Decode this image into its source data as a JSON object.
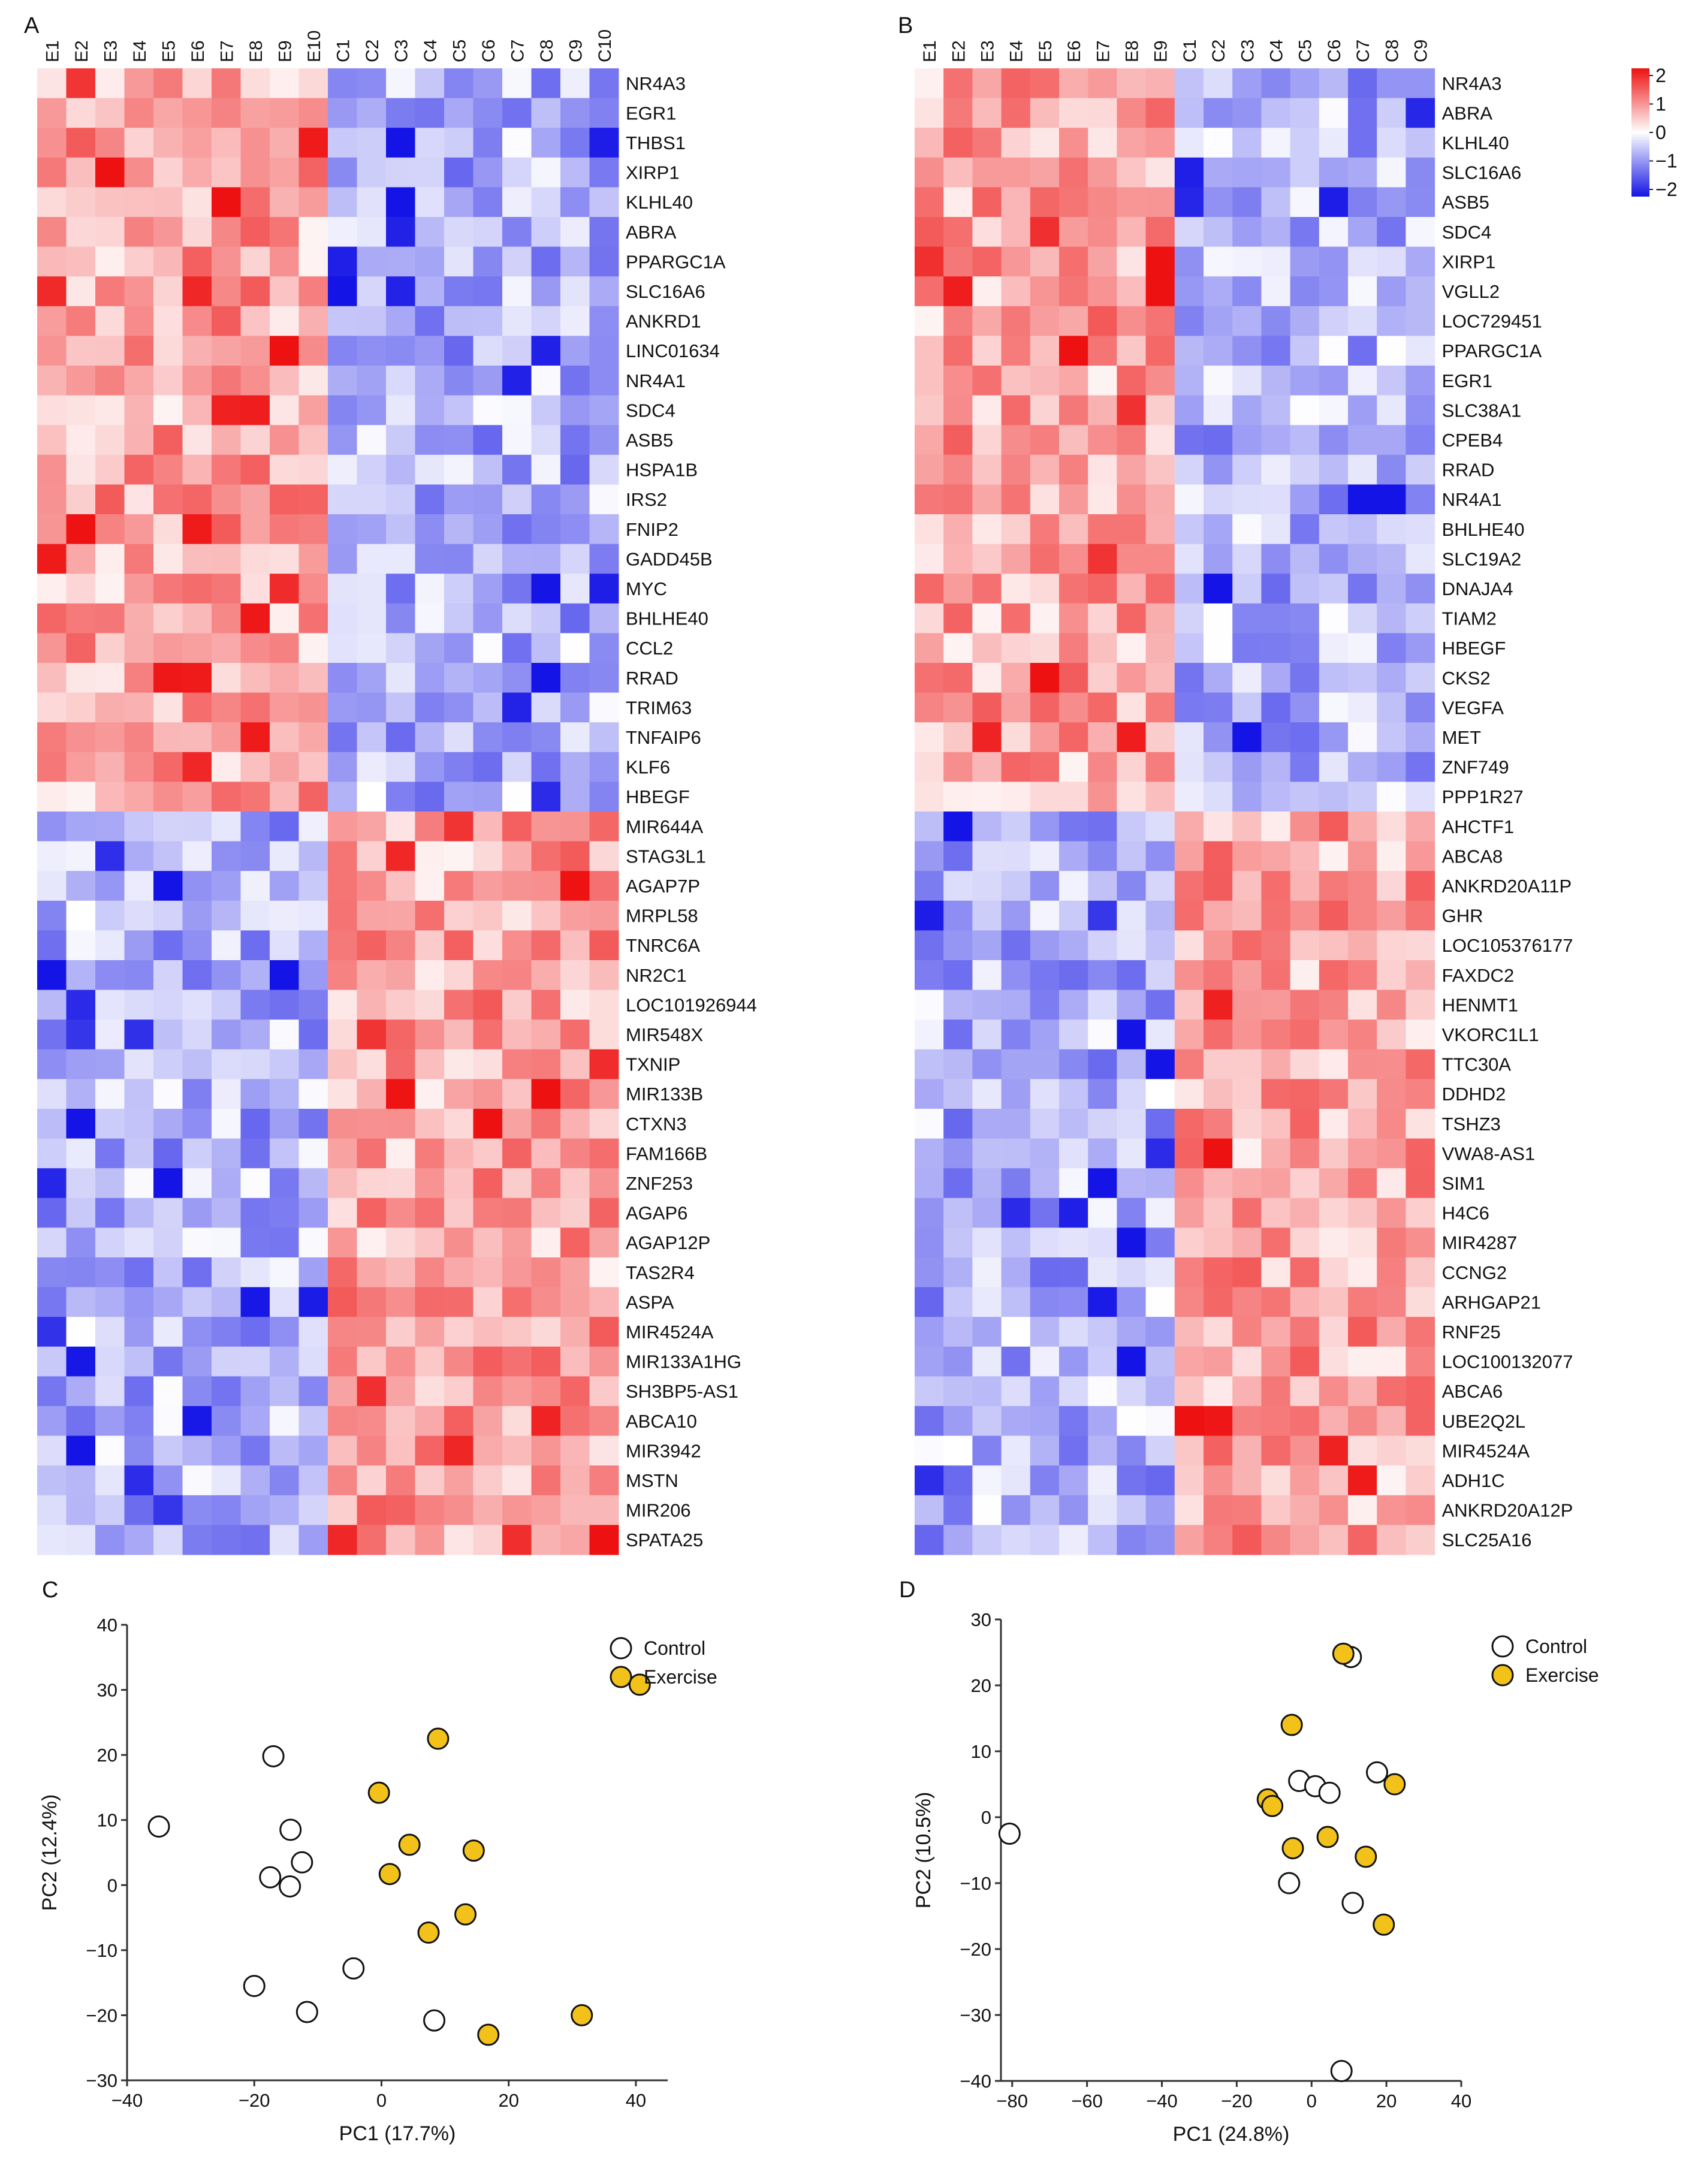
{
  "chart_data": [
    {
      "panel": "A",
      "type": "heatmap",
      "columns": [
        "E1",
        "E2",
        "E3",
        "E4",
        "E5",
        "E6",
        "E7",
        "E8",
        "E9",
        "E10",
        "C1",
        "C2",
        "C3",
        "C4",
        "C5",
        "C6",
        "C7",
        "C8",
        "C9",
        "C10"
      ],
      "rows": [
        "NR4A3",
        "EGR1",
        "THBS1",
        "XIRP1",
        "KLHL40",
        "ABRA",
        "PPARGC1A",
        "SLC16A6",
        "ANKRD1",
        "LINC01634",
        "NR4A1",
        "SDC4",
        "ASB5",
        "HSPA1B",
        "IRS2",
        "FNIP2",
        "GADD45B",
        "MYC",
        "BHLHE40",
        "CCL2",
        "RRAD",
        "TRIM63",
        "TNFAIP6",
        "KLF6",
        "HBEGF",
        "MIR644A",
        "STAG3L1",
        "AGAP7P",
        "MRPL58",
        "TNRC6A",
        "NR2C1",
        "LOC101926944",
        "MIR548X",
        "TXNIP",
        "MIR133B",
        "CTXN3",
        "FAM166B",
        "ZNF253",
        "AGAP6",
        "AGAP12P",
        "TAS2R4",
        "ASPA",
        "MIR4524A",
        "MIR133A1HG",
        "SH3BP5-AS1",
        "ABCA10",
        "MIR3942",
        "MSTN",
        "MIR206",
        "SPATA25"
      ],
      "up_rows": 25,
      "exercise_cols": 10,
      "color_range": [
        -2,
        2
      ]
    },
    {
      "panel": "B",
      "type": "heatmap",
      "columns": [
        "E1",
        "E2",
        "E3",
        "E4",
        "E5",
        "E6",
        "E7",
        "E8",
        "E9",
        "C1",
        "C2",
        "C3",
        "C4",
        "C5",
        "C6",
        "C7",
        "C8",
        "C9"
      ],
      "rows": [
        "NR4A3",
        "ABRA",
        "KLHL40",
        "SLC16A6",
        "ASB5",
        "SDC4",
        "XIRP1",
        "VGLL2",
        "LOC729451",
        "PPARGC1A",
        "EGR1",
        "SLC38A1",
        "CPEB4",
        "RRAD",
        "NR4A1",
        "BHLHE40",
        "SLC19A2",
        "DNAJA4",
        "TIAM2",
        "HBEGF",
        "CKS2",
        "VEGFA",
        "MET",
        "ZNF749",
        "PPP1R27",
        "AHCTF1",
        "ABCA8",
        "ANKRD20A11P",
        "GHR",
        "LOC105376177",
        "FAXDC2",
        "HENMT1",
        "VKORC1L1",
        "TTC30A",
        "DDHD2",
        "TSHZ3",
        "VWA8-AS1",
        "SIM1",
        "H4C6",
        "MIR4287",
        "CCNG2",
        "ARHGAP21",
        "RNF25",
        "LOC100132077",
        "ABCA6",
        "UBE2Q2L",
        "MIR4524A",
        "ADH1C",
        "ANKRD20A12P",
        "SLC25A16"
      ],
      "up_rows": 25,
      "exercise_cols": 9,
      "color_range": [
        -2,
        2
      ],
      "legend_ticks": [
        "2",
        "1",
        "0",
        "−1",
        "−2"
      ]
    },
    {
      "panel": "C",
      "type": "scatter",
      "xlabel": "PC1 (17.7%)",
      "ylabel": "PC2 (12.4%)",
      "xlim": [
        -40,
        45
      ],
      "ylim": [
        -30,
        40
      ],
      "xticks": [
        -40,
        -20,
        0,
        20,
        40
      ],
      "yticks": [
        -30,
        -20,
        -10,
        0,
        10,
        20,
        30,
        40
      ],
      "series": [
        {
          "name": "Control",
          "points": [
            [
              -35,
              9
            ],
            [
              -17,
              19.8
            ],
            [
              -14.3,
              8.5
            ],
            [
              -12.5,
              3.5
            ],
            [
              -17.5,
              1.2
            ],
            [
              -14.4,
              -0.2
            ],
            [
              -20,
              -15.5
            ],
            [
              -4.4,
              -12.8
            ],
            [
              -11.7,
              -19.5
            ],
            [
              8.3,
              -20.8
            ]
          ]
        },
        {
          "name": "Exercise",
          "points": [
            [
              40.6,
              30.8
            ],
            [
              8.9,
              22.5
            ],
            [
              -0.4,
              14.2
            ],
            [
              4.4,
              6.2
            ],
            [
              14.5,
              5.3
            ],
            [
              1.3,
              1.7
            ],
            [
              13.2,
              -4.5
            ],
            [
              7.4,
              -7.3
            ],
            [
              31.5,
              -20
            ],
            [
              16.8,
              -23
            ]
          ]
        }
      ],
      "legend": [
        "Control",
        "Exercise"
      ]
    },
    {
      "panel": "D",
      "type": "scatter",
      "xlabel": "PC1 (24.8%)",
      "ylabel": "PC2 (10.5%)",
      "xlim": [
        -83,
        40
      ],
      "ylim": [
        -40,
        30
      ],
      "xticks": [
        -80,
        -60,
        -40,
        -20,
        0,
        20,
        40
      ],
      "yticks": [
        -40,
        -30,
        -20,
        -10,
        0,
        10,
        20,
        30
      ],
      "series": [
        {
          "name": "Control",
          "points": [
            [
              -80.7,
              -2.5
            ],
            [
              10.5,
              24.3
            ],
            [
              -3.3,
              5.5
            ],
            [
              1,
              4.7
            ],
            [
              4.8,
              3.7
            ],
            [
              17.5,
              6.8
            ],
            [
              -6,
              -10
            ],
            [
              11,
              -13
            ],
            [
              8,
              -38.5
            ]
          ]
        },
        {
          "name": "Exercise",
          "points": [
            [
              8.5,
              24.8
            ],
            [
              -5.3,
              14
            ],
            [
              -11.7,
              2.7
            ],
            [
              -10.5,
              1.7
            ],
            [
              22.2,
              5
            ],
            [
              4.3,
              -3
            ],
            [
              -5,
              -4.7
            ],
            [
              14.5,
              -6
            ],
            [
              19.3,
              -16.3
            ]
          ]
        }
      ],
      "legend": [
        "Control",
        "Exercise"
      ]
    }
  ],
  "panel_labels": [
    "A",
    "B",
    "C",
    "D"
  ],
  "colors": {
    "high": "#ee1111",
    "mid": "#ffffff",
    "low": "#1414e6",
    "control_fill": "#ffffff",
    "exercise_fill": "#f2c21b"
  }
}
